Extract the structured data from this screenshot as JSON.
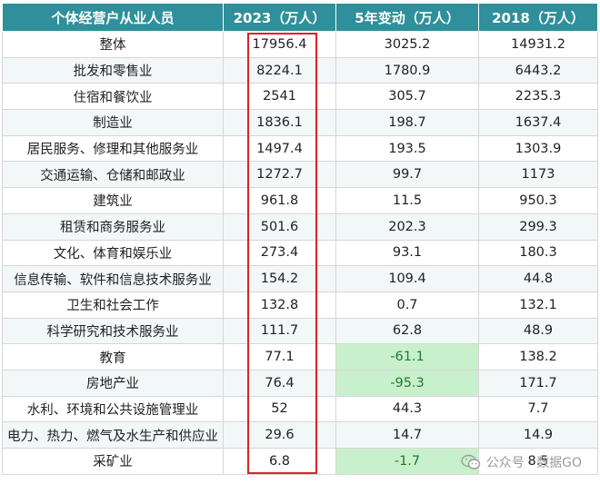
{
  "table": {
    "headers": [
      "个体经营户从业人员",
      "2023（万人）",
      "5年变动（万人）",
      "2018（万人）"
    ],
    "rows": [
      [
        "整体",
        "17956.4",
        "3025.2",
        "14931.2"
      ],
      [
        "批发和零售业",
        "8224.1",
        "1780.9",
        "6443.2"
      ],
      [
        "住宿和餐饮业",
        "2541",
        "305.7",
        "2235.3"
      ],
      [
        "制造业",
        "1836.1",
        "198.7",
        "1637.4"
      ],
      [
        "居民服务、修理和其他服务业",
        "1497.4",
        "193.5",
        "1303.9"
      ],
      [
        "交通运输、仓储和邮政业",
        "1272.7",
        "99.7",
        "1173"
      ],
      [
        "建筑业",
        "961.8",
        "11.5",
        "950.3"
      ],
      [
        "租赁和商务服务业",
        "501.6",
        "202.3",
        "299.3"
      ],
      [
        "文化、体育和娱乐业",
        "273.4",
        "93.1",
        "180.3"
      ],
      [
        "信息传输、软件和信息技术服务业",
        "154.2",
        "109.4",
        "44.8"
      ],
      [
        "卫生和社会工作",
        "132.8",
        "0.7",
        "132.1"
      ],
      [
        "科学研究和技术服务业",
        "111.7",
        "62.8",
        "48.9"
      ],
      [
        "教育",
        "77.1",
        "-61.1",
        "138.2"
      ],
      [
        "房地产业",
        "76.4",
        "-95.3",
        "171.7"
      ],
      [
        "水利、环境和公共设施管理业",
        "52",
        "44.3",
        "7.7"
      ],
      [
        "电力、热力、燃气及水生产和供应业",
        "29.6",
        "14.7",
        "14.9"
      ],
      [
        "采矿业",
        "6.8",
        "-1.7",
        "8.5"
      ]
    ]
  },
  "watermark": {
    "text": "公众号 · 数据GO",
    "icon": "wechat-icon"
  },
  "colors": {
    "header_bg": "#2f8f9a",
    "negative_bg": "#c9f0cc",
    "highlight_border": "#d9232d"
  }
}
